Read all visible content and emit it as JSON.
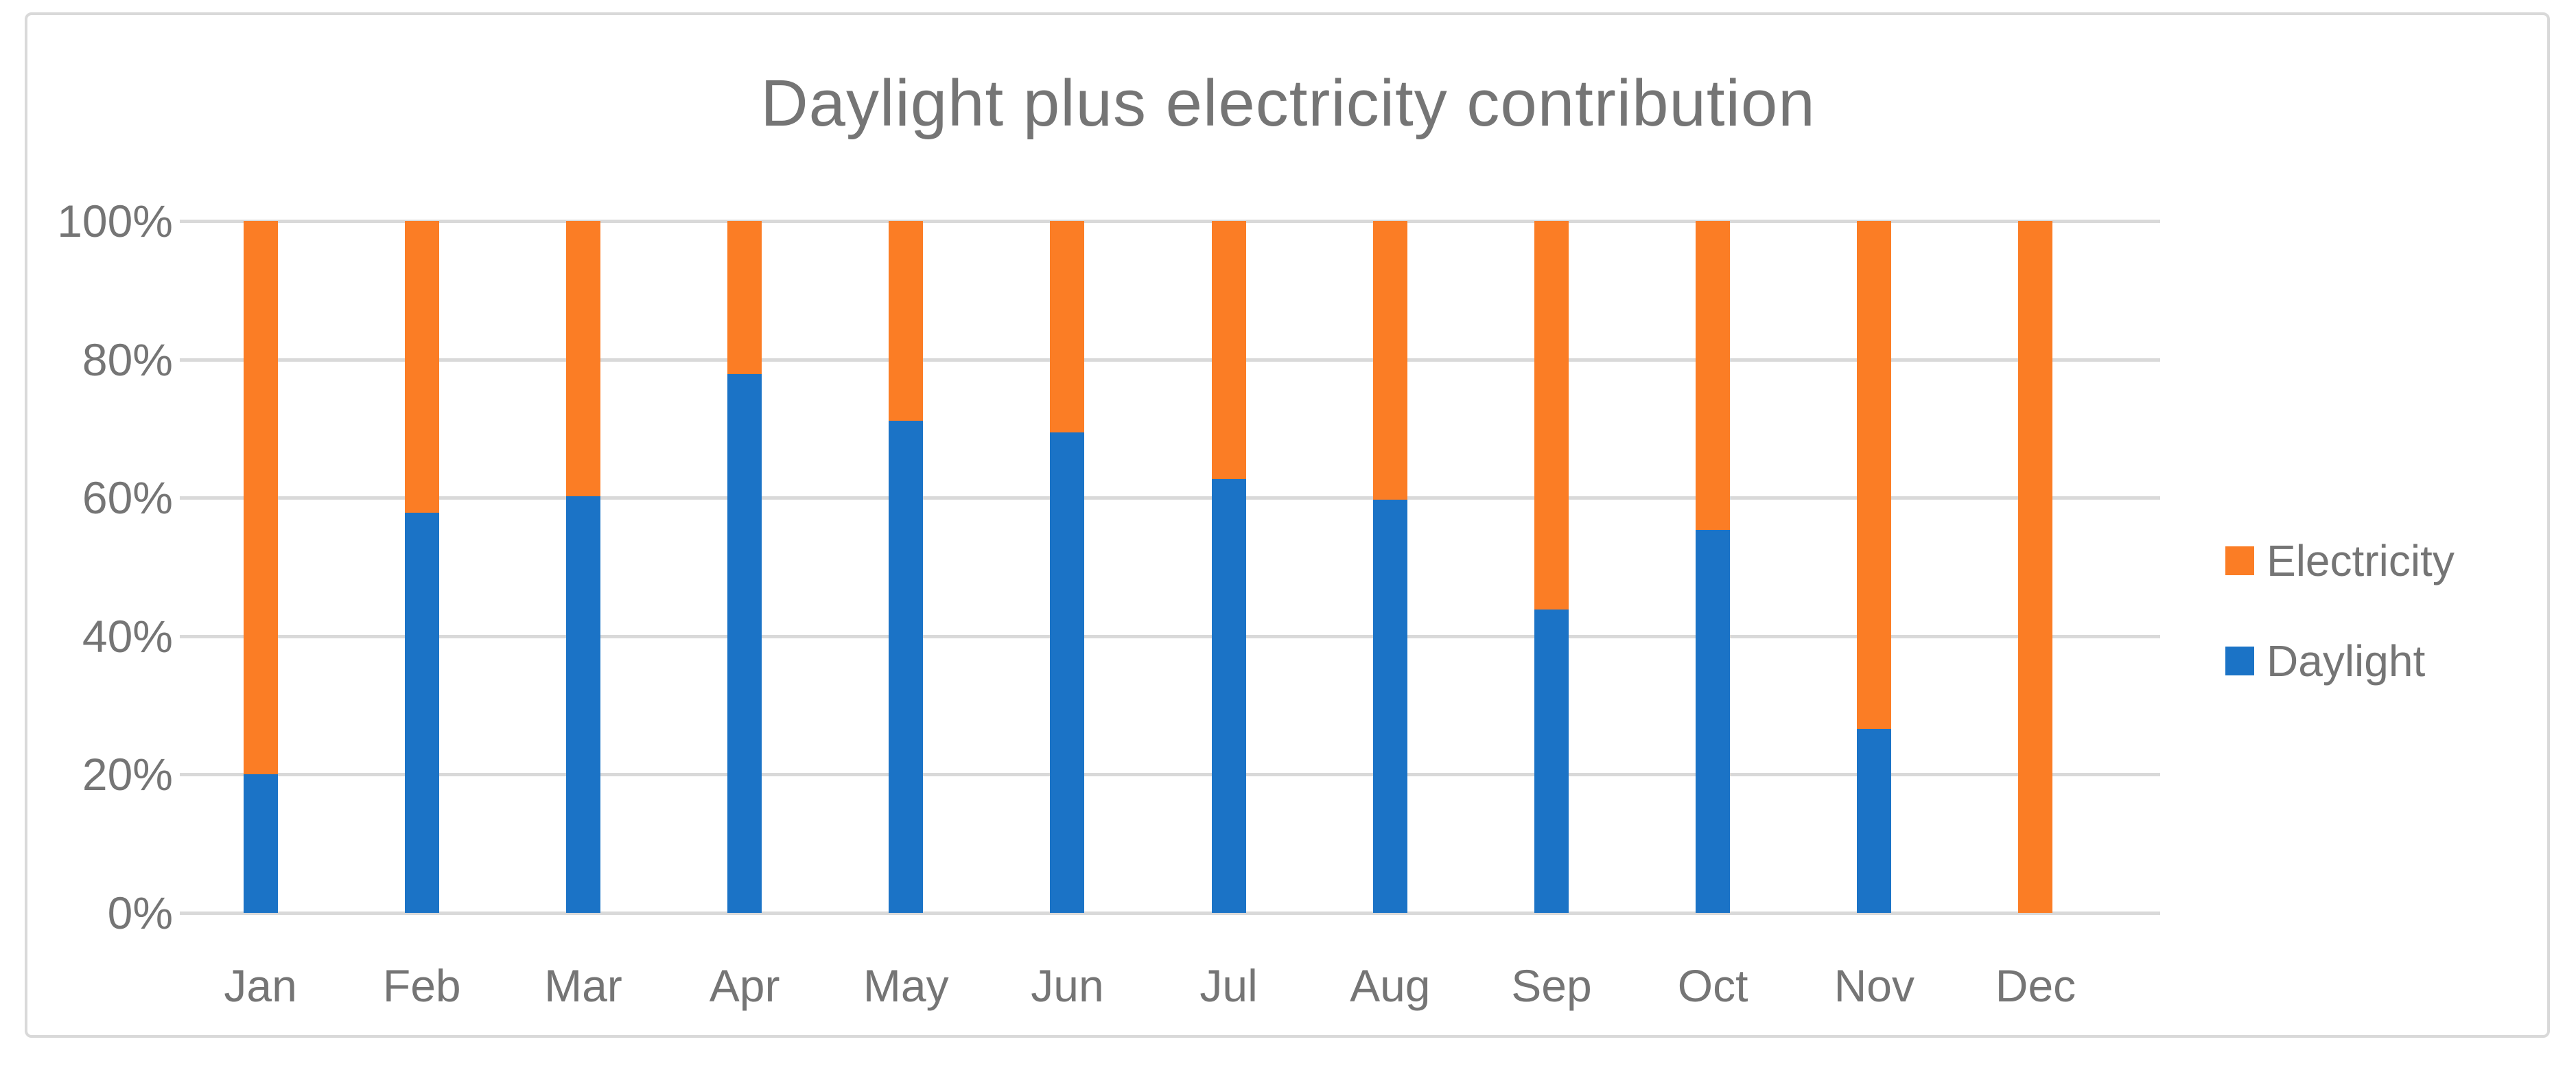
{
  "title": "Daylight plus electricity contribution",
  "chart_data": {
    "type": "bar",
    "subtype": "stacked-100-percent",
    "title": "Daylight plus electricity contribution",
    "categories": [
      "Jan",
      "Feb",
      "Mar",
      "Apr",
      "May",
      "Jun",
      "Jul",
      "Aug",
      "Sep",
      "Oct",
      "Nov",
      "Dec"
    ],
    "series": [
      {
        "name": "Daylight",
        "color": "#1b73c6",
        "values": [
          20,
          57.8,
          60.2,
          77.9,
          71.1,
          69.4,
          62.7,
          59.7,
          43.8,
          55.4,
          26.6,
          0
        ]
      },
      {
        "name": "Electricity",
        "color": "#fb7d25",
        "values": [
          80,
          42.2,
          39.8,
          22.1,
          28.9,
          30.6,
          37.3,
          40.3,
          56.2,
          44.6,
          73.4,
          100
        ]
      }
    ],
    "xlabel": "",
    "ylabel": "",
    "ylim": [
      0,
      100
    ],
    "ytick_labels": [
      "100%",
      "80%",
      "60%",
      "40%",
      "20%",
      "0%"
    ],
    "grid": "horizontal",
    "gridline_color": "#d9d9d9",
    "legend_position": "right",
    "legend_entries": [
      "Electricity",
      "Daylight"
    ],
    "text_color": "#757575",
    "background_color": "#ffffff",
    "border_color": "#d9d9d9"
  }
}
